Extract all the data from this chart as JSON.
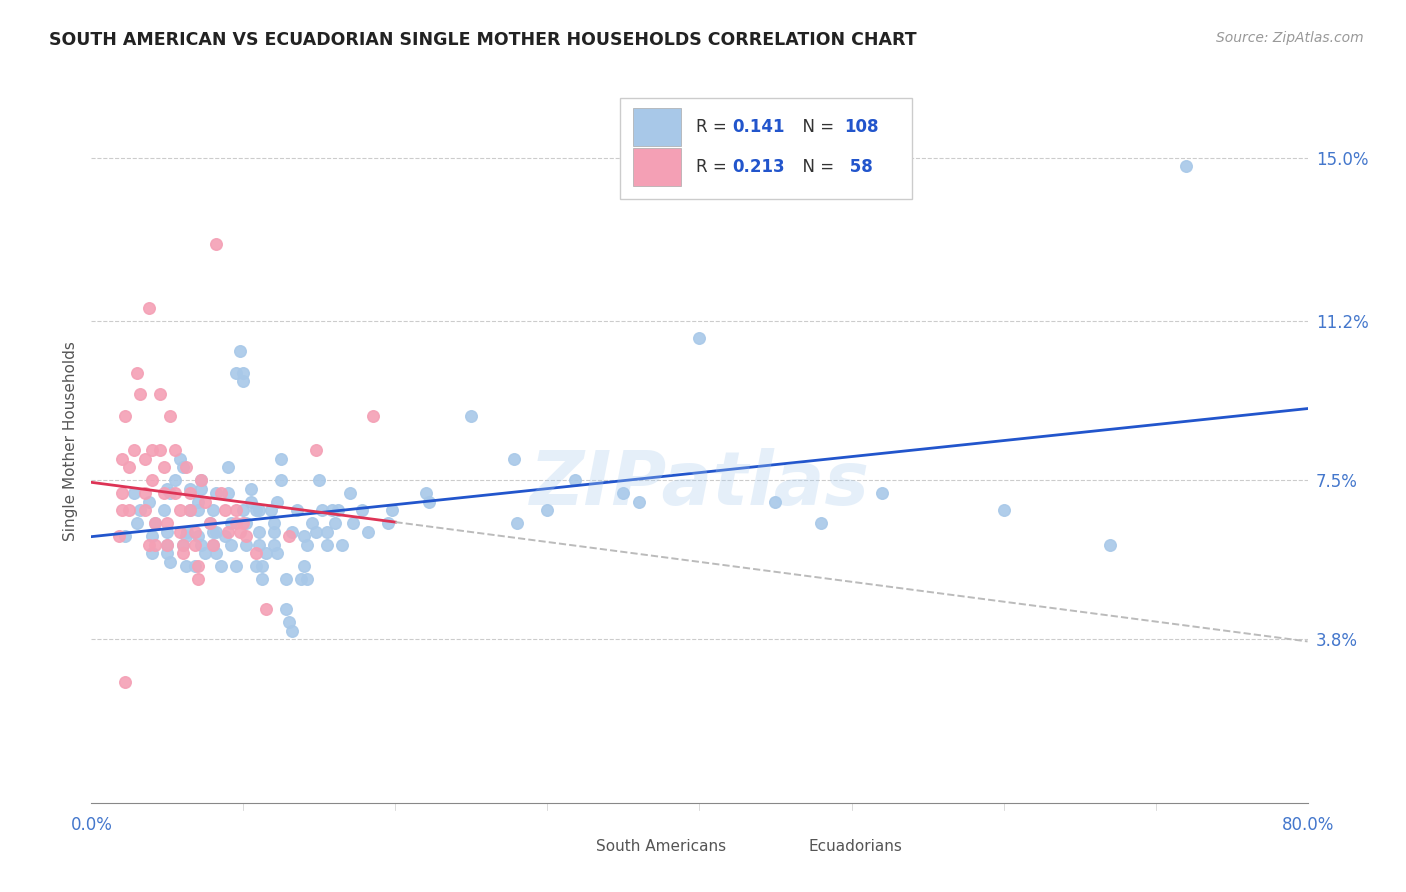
{
  "title": "SOUTH AMERICAN VS ECUADORIAN SINGLE MOTHER HOUSEHOLDS CORRELATION CHART",
  "source": "Source: ZipAtlas.com",
  "ylabel": "Single Mother Households",
  "x_min": 0.0,
  "x_max": 0.8,
  "y_min": 0.0,
  "y_max": 0.168,
  "y_ticks": [
    0.038,
    0.075,
    0.112,
    0.15
  ],
  "y_tick_labels": [
    "3.8%",
    "7.5%",
    "11.2%",
    "15.0%"
  ],
  "x_ticks": [
    0.0,
    0.8
  ],
  "x_tick_labels": [
    "0.0%",
    "80.0%"
  ],
  "watermark": "ZIPatlas",
  "blue_color": "#a8c8e8",
  "pink_color": "#f4a0b5",
  "blue_line_color": "#2255cc",
  "pink_line_color": "#dd3355",
  "blue_scatter": [
    [
      0.022,
      0.062
    ],
    [
      0.028,
      0.072
    ],
    [
      0.03,
      0.065
    ],
    [
      0.032,
      0.068
    ],
    [
      0.038,
      0.07
    ],
    [
      0.04,
      0.062
    ],
    [
      0.04,
      0.058
    ],
    [
      0.042,
      0.065
    ],
    [
      0.048,
      0.068
    ],
    [
      0.05,
      0.063
    ],
    [
      0.05,
      0.073
    ],
    [
      0.05,
      0.058
    ],
    [
      0.05,
      0.06
    ],
    [
      0.052,
      0.056
    ],
    [
      0.052,
      0.072
    ],
    [
      0.055,
      0.075
    ],
    [
      0.058,
      0.08
    ],
    [
      0.06,
      0.078
    ],
    [
      0.06,
      0.06
    ],
    [
      0.062,
      0.062
    ],
    [
      0.062,
      0.055
    ],
    [
      0.063,
      0.063
    ],
    [
      0.065,
      0.068
    ],
    [
      0.065,
      0.073
    ],
    [
      0.068,
      0.055
    ],
    [
      0.07,
      0.062
    ],
    [
      0.07,
      0.07
    ],
    [
      0.07,
      0.068
    ],
    [
      0.072,
      0.073
    ],
    [
      0.072,
      0.075
    ],
    [
      0.072,
      0.06
    ],
    [
      0.075,
      0.058
    ],
    [
      0.078,
      0.065
    ],
    [
      0.08,
      0.06
    ],
    [
      0.08,
      0.063
    ],
    [
      0.08,
      0.068
    ],
    [
      0.082,
      0.058
    ],
    [
      0.082,
      0.063
    ],
    [
      0.082,
      0.072
    ],
    [
      0.085,
      0.055
    ],
    [
      0.088,
      0.062
    ],
    [
      0.09,
      0.072
    ],
    [
      0.09,
      0.078
    ],
    [
      0.092,
      0.065
    ],
    [
      0.092,
      0.06
    ],
    [
      0.095,
      0.055
    ],
    [
      0.095,
      0.1
    ],
    [
      0.098,
      0.105
    ],
    [
      0.1,
      0.098
    ],
    [
      0.1,
      0.1
    ],
    [
      0.1,
      0.068
    ],
    [
      0.102,
      0.065
    ],
    [
      0.102,
      0.06
    ],
    [
      0.105,
      0.07
    ],
    [
      0.105,
      0.073
    ],
    [
      0.108,
      0.055
    ],
    [
      0.108,
      0.068
    ],
    [
      0.11,
      0.063
    ],
    [
      0.11,
      0.06
    ],
    [
      0.11,
      0.068
    ],
    [
      0.112,
      0.055
    ],
    [
      0.112,
      0.052
    ],
    [
      0.115,
      0.058
    ],
    [
      0.118,
      0.068
    ],
    [
      0.12,
      0.063
    ],
    [
      0.12,
      0.06
    ],
    [
      0.12,
      0.065
    ],
    [
      0.122,
      0.058
    ],
    [
      0.122,
      0.07
    ],
    [
      0.125,
      0.075
    ],
    [
      0.125,
      0.08
    ],
    [
      0.128,
      0.052
    ],
    [
      0.128,
      0.045
    ],
    [
      0.13,
      0.042
    ],
    [
      0.132,
      0.04
    ],
    [
      0.132,
      0.063
    ],
    [
      0.135,
      0.068
    ],
    [
      0.138,
      0.052
    ],
    [
      0.14,
      0.062
    ],
    [
      0.14,
      0.055
    ],
    [
      0.142,
      0.06
    ],
    [
      0.142,
      0.052
    ],
    [
      0.145,
      0.065
    ],
    [
      0.148,
      0.063
    ],
    [
      0.15,
      0.075
    ],
    [
      0.152,
      0.068
    ],
    [
      0.155,
      0.06
    ],
    [
      0.155,
      0.063
    ],
    [
      0.158,
      0.068
    ],
    [
      0.16,
      0.065
    ],
    [
      0.162,
      0.068
    ],
    [
      0.165,
      0.06
    ],
    [
      0.17,
      0.072
    ],
    [
      0.172,
      0.065
    ],
    [
      0.178,
      0.068
    ],
    [
      0.182,
      0.063
    ],
    [
      0.195,
      0.065
    ],
    [
      0.198,
      0.068
    ],
    [
      0.22,
      0.072
    ],
    [
      0.222,
      0.07
    ],
    [
      0.25,
      0.09
    ],
    [
      0.278,
      0.08
    ],
    [
      0.28,
      0.065
    ],
    [
      0.3,
      0.068
    ],
    [
      0.318,
      0.075
    ],
    [
      0.35,
      0.072
    ],
    [
      0.36,
      0.07
    ],
    [
      0.4,
      0.108
    ],
    [
      0.45,
      0.07
    ],
    [
      0.48,
      0.065
    ],
    [
      0.52,
      0.072
    ],
    [
      0.6,
      0.068
    ],
    [
      0.67,
      0.06
    ],
    [
      0.72,
      0.148
    ]
  ],
  "pink_scatter": [
    [
      0.018,
      0.062
    ],
    [
      0.02,
      0.072
    ],
    [
      0.02,
      0.068
    ],
    [
      0.02,
      0.08
    ],
    [
      0.022,
      0.09
    ],
    [
      0.025,
      0.068
    ],
    [
      0.025,
      0.078
    ],
    [
      0.028,
      0.082
    ],
    [
      0.03,
      0.1
    ],
    [
      0.032,
      0.095
    ],
    [
      0.035,
      0.08
    ],
    [
      0.035,
      0.072
    ],
    [
      0.035,
      0.068
    ],
    [
      0.038,
      0.06
    ],
    [
      0.038,
      0.115
    ],
    [
      0.04,
      0.082
    ],
    [
      0.04,
      0.075
    ],
    [
      0.042,
      0.065
    ],
    [
      0.042,
      0.06
    ],
    [
      0.045,
      0.095
    ],
    [
      0.045,
      0.082
    ],
    [
      0.048,
      0.078
    ],
    [
      0.048,
      0.072
    ],
    [
      0.05,
      0.065
    ],
    [
      0.05,
      0.06
    ],
    [
      0.052,
      0.09
    ],
    [
      0.055,
      0.082
    ],
    [
      0.055,
      0.072
    ],
    [
      0.058,
      0.068
    ],
    [
      0.058,
      0.063
    ],
    [
      0.06,
      0.06
    ],
    [
      0.06,
      0.058
    ],
    [
      0.062,
      0.078
    ],
    [
      0.065,
      0.072
    ],
    [
      0.065,
      0.068
    ],
    [
      0.068,
      0.063
    ],
    [
      0.068,
      0.06
    ],
    [
      0.07,
      0.055
    ],
    [
      0.07,
      0.052
    ],
    [
      0.072,
      0.075
    ],
    [
      0.075,
      0.07
    ],
    [
      0.078,
      0.065
    ],
    [
      0.08,
      0.06
    ],
    [
      0.082,
      0.13
    ],
    [
      0.085,
      0.072
    ],
    [
      0.088,
      0.068
    ],
    [
      0.09,
      0.063
    ],
    [
      0.095,
      0.068
    ],
    [
      0.095,
      0.065
    ],
    [
      0.098,
      0.063
    ],
    [
      0.1,
      0.065
    ],
    [
      0.102,
      0.062
    ],
    [
      0.108,
      0.058
    ],
    [
      0.115,
      0.045
    ],
    [
      0.13,
      0.062
    ],
    [
      0.148,
      0.082
    ],
    [
      0.185,
      0.09
    ],
    [
      0.022,
      0.028
    ]
  ],
  "pink_line_solid_end": 0.2,
  "pink_line_dash_end": 0.8
}
